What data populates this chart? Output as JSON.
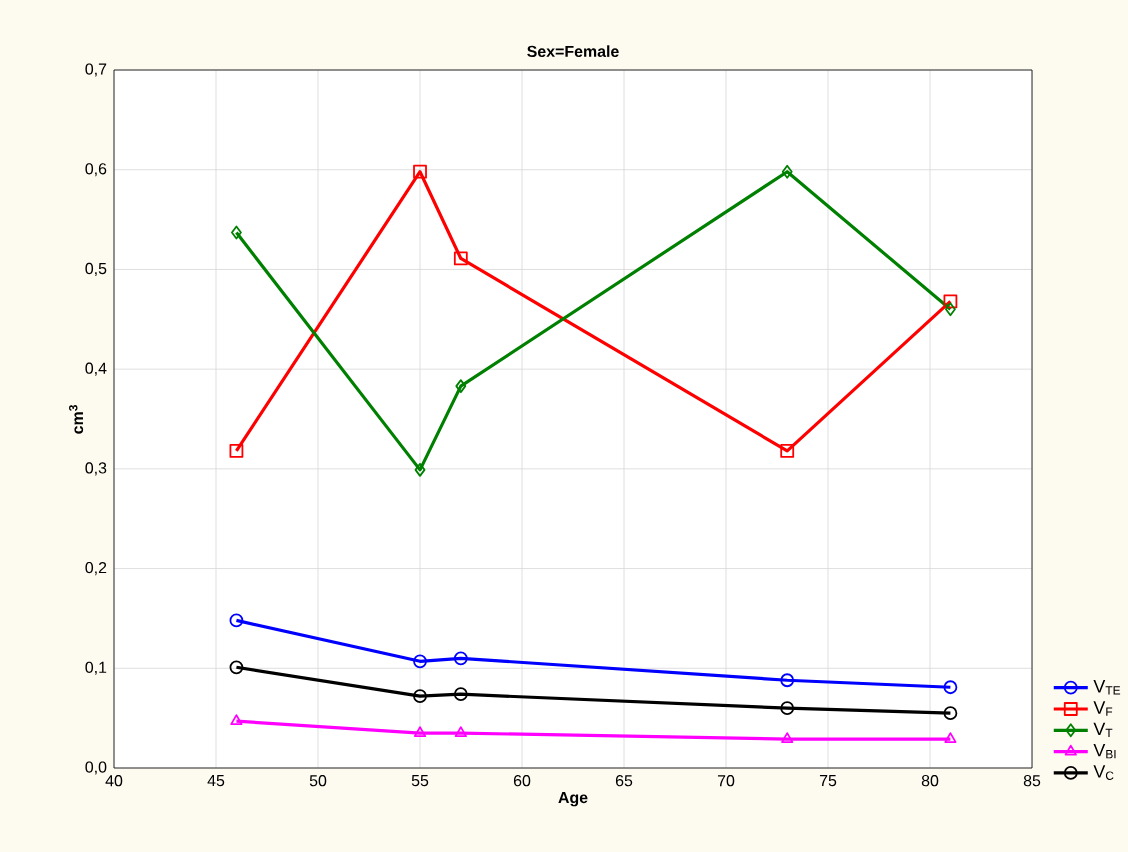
{
  "chart_data": {
    "type": "line",
    "title": "Sex=Female",
    "xlabel": "Age",
    "ylabel": "cm$^{3}$",
    "x": [
      46,
      55,
      57,
      73,
      81
    ],
    "series": [
      {
        "name": "V$_{TE}$",
        "color": "#0000ff",
        "marker": "circle",
        "values": [
          0.148,
          0.107,
          0.11,
          0.088,
          0.081
        ]
      },
      {
        "name": "V$_{F}$",
        "color": "#ff0000",
        "marker": "square",
        "values": [
          0.318,
          0.598,
          0.511,
          0.318,
          0.468
        ]
      },
      {
        "name": "V$_{T}$",
        "color": "#008000",
        "marker": "diamond",
        "values": [
          0.537,
          0.299,
          0.383,
          0.598,
          0.46
        ]
      },
      {
        "name": "V$_{BI}$",
        "color": "#ff00ff",
        "marker": "triangle",
        "values": [
          0.047,
          0.035,
          0.035,
          0.029,
          0.029
        ]
      },
      {
        "name": "V$_{C}$",
        "color": "#000000",
        "marker": "circle",
        "values": [
          0.101,
          0.072,
          0.074,
          0.06,
          0.055
        ]
      }
    ],
    "xlim": [
      40,
      85
    ],
    "xticks": [
      40,
      45,
      50,
      55,
      60,
      65,
      70,
      75,
      80,
      85
    ],
    "ylim": [
      0,
      0.7
    ],
    "yticks": [
      {
        "value": 0,
        "label": "0,0"
      },
      {
        "value": 0.1,
        "label": "0,1"
      },
      {
        "value": 0.2,
        "label": "0,2"
      },
      {
        "value": 0.3,
        "label": "0,3"
      },
      {
        "value": 0.4,
        "label": "0,4"
      },
      {
        "value": 0.5,
        "label": "0,5"
      },
      {
        "value": 0.6,
        "label": "0,6"
      },
      {
        "value": 0.7,
        "label": "0,7"
      }
    ],
    "grid": true,
    "legend": "bottom right",
    "line_style": "solid"
  }
}
